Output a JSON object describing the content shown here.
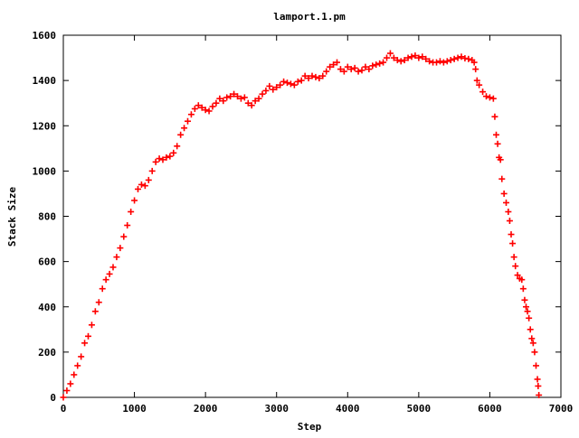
{
  "chart_data": {
    "type": "scatter",
    "title": "lamport.1.pm",
    "xlabel": "Step",
    "ylabel": "Stack Size",
    "xlim": [
      0,
      7000
    ],
    "ylim": [
      0,
      1600
    ],
    "xticks": [
      "0",
      "1000",
      "2000",
      "3000",
      "4000",
      "5000",
      "6000",
      "7000"
    ],
    "yticks": [
      "0",
      "200",
      "400",
      "600",
      "800",
      "1000",
      "1200",
      "1400",
      "1600"
    ],
    "grid": false,
    "legend": "none",
    "marker": "plus",
    "marker_color": "#ff0000",
    "series": [
      {
        "points": [
          [
            0,
            0
          ],
          [
            50,
            30
          ],
          [
            100,
            60
          ],
          [
            150,
            100
          ],
          [
            200,
            140
          ],
          [
            250,
            180
          ],
          [
            300,
            240
          ],
          [
            350,
            270
          ],
          [
            400,
            320
          ],
          [
            450,
            380
          ],
          [
            500,
            420
          ],
          [
            550,
            480
          ],
          [
            600,
            520
          ],
          [
            650,
            545
          ],
          [
            700,
            575
          ],
          [
            750,
            620
          ],
          [
            800,
            660
          ],
          [
            850,
            710
          ],
          [
            900,
            760
          ],
          [
            950,
            820
          ],
          [
            1000,
            870
          ],
          [
            1050,
            920
          ],
          [
            1100,
            940
          ],
          [
            1150,
            935
          ],
          [
            1200,
            960
          ],
          [
            1250,
            1000
          ],
          [
            1300,
            1040
          ],
          [
            1350,
            1055
          ],
          [
            1400,
            1050
          ],
          [
            1450,
            1060
          ],
          [
            1500,
            1065
          ],
          [
            1550,
            1080
          ],
          [
            1600,
            1110
          ],
          [
            1650,
            1160
          ],
          [
            1700,
            1190
          ],
          [
            1750,
            1220
          ],
          [
            1800,
            1250
          ],
          [
            1850,
            1275
          ],
          [
            1900,
            1290
          ],
          [
            1950,
            1280
          ],
          [
            2000,
            1270
          ],
          [
            2050,
            1265
          ],
          [
            2100,
            1285
          ],
          [
            2150,
            1300
          ],
          [
            2200,
            1320
          ],
          [
            2250,
            1310
          ],
          [
            2300,
            1325
          ],
          [
            2350,
            1330
          ],
          [
            2400,
            1340
          ],
          [
            2450,
            1330
          ],
          [
            2500,
            1320
          ],
          [
            2550,
            1325
          ],
          [
            2600,
            1300
          ],
          [
            2650,
            1290
          ],
          [
            2700,
            1310
          ],
          [
            2750,
            1320
          ],
          [
            2800,
            1340
          ],
          [
            2850,
            1355
          ],
          [
            2900,
            1375
          ],
          [
            2950,
            1360
          ],
          [
            3000,
            1370
          ],
          [
            3050,
            1380
          ],
          [
            3100,
            1395
          ],
          [
            3150,
            1390
          ],
          [
            3200,
            1385
          ],
          [
            3250,
            1380
          ],
          [
            3300,
            1395
          ],
          [
            3350,
            1400
          ],
          [
            3400,
            1420
          ],
          [
            3450,
            1410
          ],
          [
            3500,
            1420
          ],
          [
            3550,
            1415
          ],
          [
            3600,
            1410
          ],
          [
            3650,
            1420
          ],
          [
            3700,
            1440
          ],
          [
            3750,
            1460
          ],
          [
            3800,
            1470
          ],
          [
            3850,
            1480
          ],
          [
            3900,
            1450
          ],
          [
            3950,
            1440
          ],
          [
            4000,
            1460
          ],
          [
            4050,
            1450
          ],
          [
            4100,
            1455
          ],
          [
            4150,
            1440
          ],
          [
            4200,
            1445
          ],
          [
            4250,
            1460
          ],
          [
            4300,
            1450
          ],
          [
            4350,
            1465
          ],
          [
            4400,
            1470
          ],
          [
            4450,
            1475
          ],
          [
            4500,
            1480
          ],
          [
            4550,
            1500
          ],
          [
            4600,
            1520
          ],
          [
            4650,
            1500
          ],
          [
            4700,
            1490
          ],
          [
            4750,
            1485
          ],
          [
            4800,
            1490
          ],
          [
            4850,
            1500
          ],
          [
            4900,
            1505
          ],
          [
            4950,
            1510
          ],
          [
            5000,
            1500
          ],
          [
            5050,
            1505
          ],
          [
            5100,
            1495
          ],
          [
            5150,
            1485
          ],
          [
            5200,
            1480
          ],
          [
            5250,
            1480
          ],
          [
            5300,
            1485
          ],
          [
            5350,
            1480
          ],
          [
            5400,
            1485
          ],
          [
            5450,
            1490
          ],
          [
            5500,
            1495
          ],
          [
            5550,
            1500
          ],
          [
            5600,
            1505
          ],
          [
            5650,
            1498
          ],
          [
            5700,
            1495
          ],
          [
            5750,
            1490
          ],
          [
            5780,
            1480
          ],
          [
            5800,
            1450
          ],
          [
            5820,
            1400
          ],
          [
            5850,
            1380
          ],
          [
            5900,
            1350
          ],
          [
            5950,
            1330
          ],
          [
            6000,
            1325
          ],
          [
            6050,
            1320
          ],
          [
            6070,
            1240
          ],
          [
            6090,
            1160
          ],
          [
            6110,
            1120
          ],
          [
            6130,
            1060
          ],
          [
            6150,
            1050
          ],
          [
            6170,
            965
          ],
          [
            6200,
            900
          ],
          [
            6230,
            860
          ],
          [
            6260,
            820
          ],
          [
            6280,
            780
          ],
          [
            6300,
            720
          ],
          [
            6320,
            680
          ],
          [
            6340,
            620
          ],
          [
            6360,
            580
          ],
          [
            6390,
            540
          ],
          [
            6420,
            525
          ],
          [
            6450,
            520
          ],
          [
            6470,
            480
          ],
          [
            6490,
            430
          ],
          [
            6510,
            400
          ],
          [
            6530,
            380
          ],
          [
            6550,
            350
          ],
          [
            6570,
            300
          ],
          [
            6590,
            260
          ],
          [
            6610,
            240
          ],
          [
            6630,
            200
          ],
          [
            6650,
            140
          ],
          [
            6670,
            80
          ],
          [
            6680,
            50
          ],
          [
            6690,
            10
          ]
        ]
      }
    ]
  }
}
